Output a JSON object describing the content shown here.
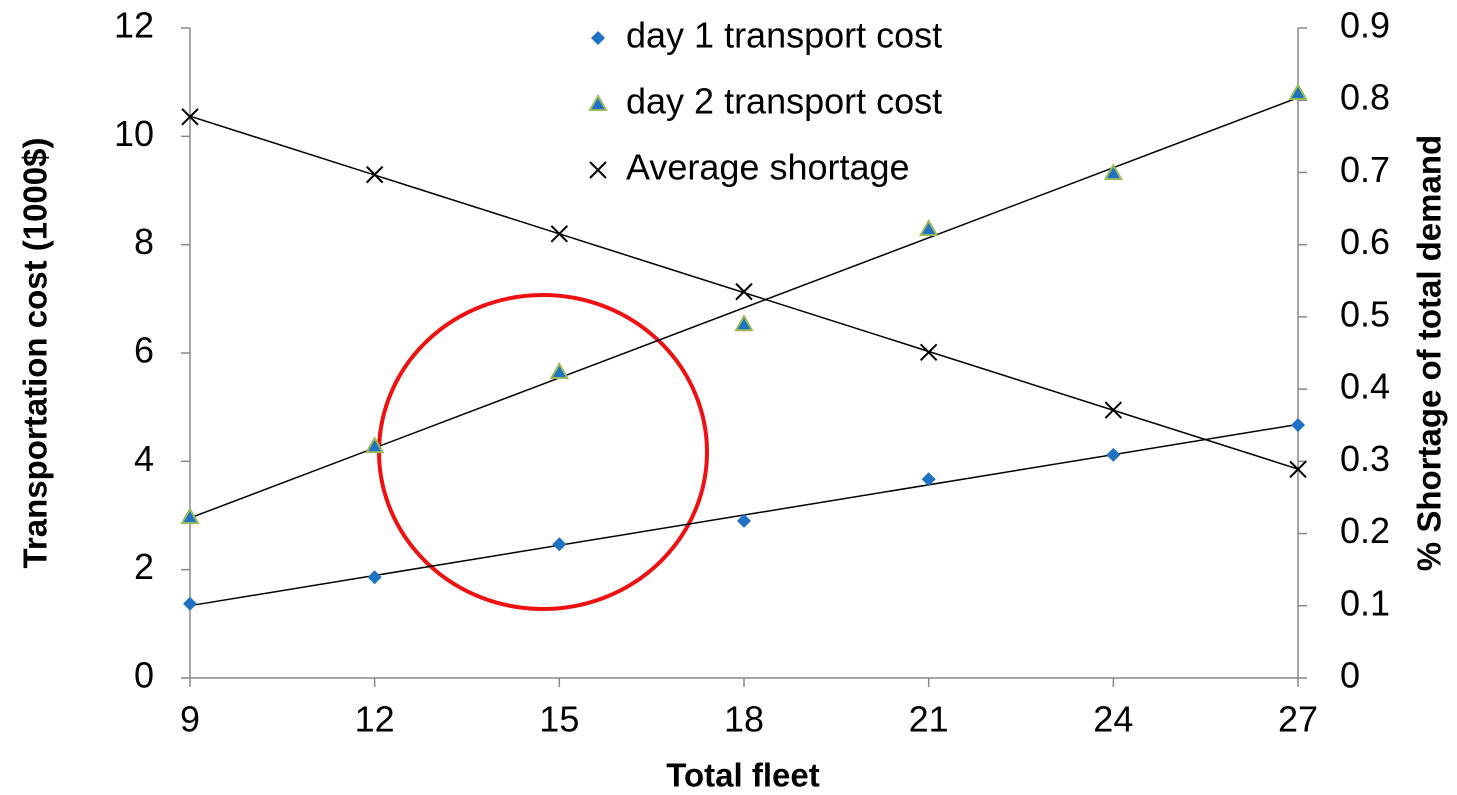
{
  "chart_data": {
    "type": "scatter",
    "x": [
      9,
      12,
      15,
      18,
      21,
      24,
      27
    ],
    "series": [
      {
        "name": "day 1 transport cost",
        "color": "#1f72c4",
        "marker": "diamond",
        "values": [
          1.37,
          1.86,
          2.47,
          2.9,
          3.67,
          4.12,
          4.67
        ]
      },
      {
        "name": "day 2 transport cost",
        "color": "#1f72c4",
        "marker": "triangle",
        "values": [
          2.97,
          4.28,
          5.65,
          6.53,
          8.29,
          9.32,
          10.8
        ]
      },
      {
        "name": "Average shortage",
        "color": "#000000",
        "marker": "x",
        "axis": "y2",
        "values": [
          0.777,
          0.697,
          0.615,
          0.535,
          0.451,
          0.371,
          0.289
        ]
      }
    ],
    "xlabel": "Total fleet",
    "ylabel": "Transportation cost (1000$)",
    "y2label": "% Shortage of total demand",
    "xlim": [
      9,
      27
    ],
    "xticks": [
      9,
      12,
      15,
      18,
      21,
      24,
      27
    ],
    "ylim": [
      0,
      12
    ],
    "yticks": [
      0,
      2,
      4,
      6,
      8,
      10,
      12
    ],
    "y2lim": [
      0,
      0.9
    ],
    "y2ticks": [
      0,
      0.1,
      0.2,
      0.3,
      0.4,
      0.5,
      0.6,
      0.7,
      0.8,
      0.9
    ],
    "trendline": true,
    "legend": "top"
  }
}
